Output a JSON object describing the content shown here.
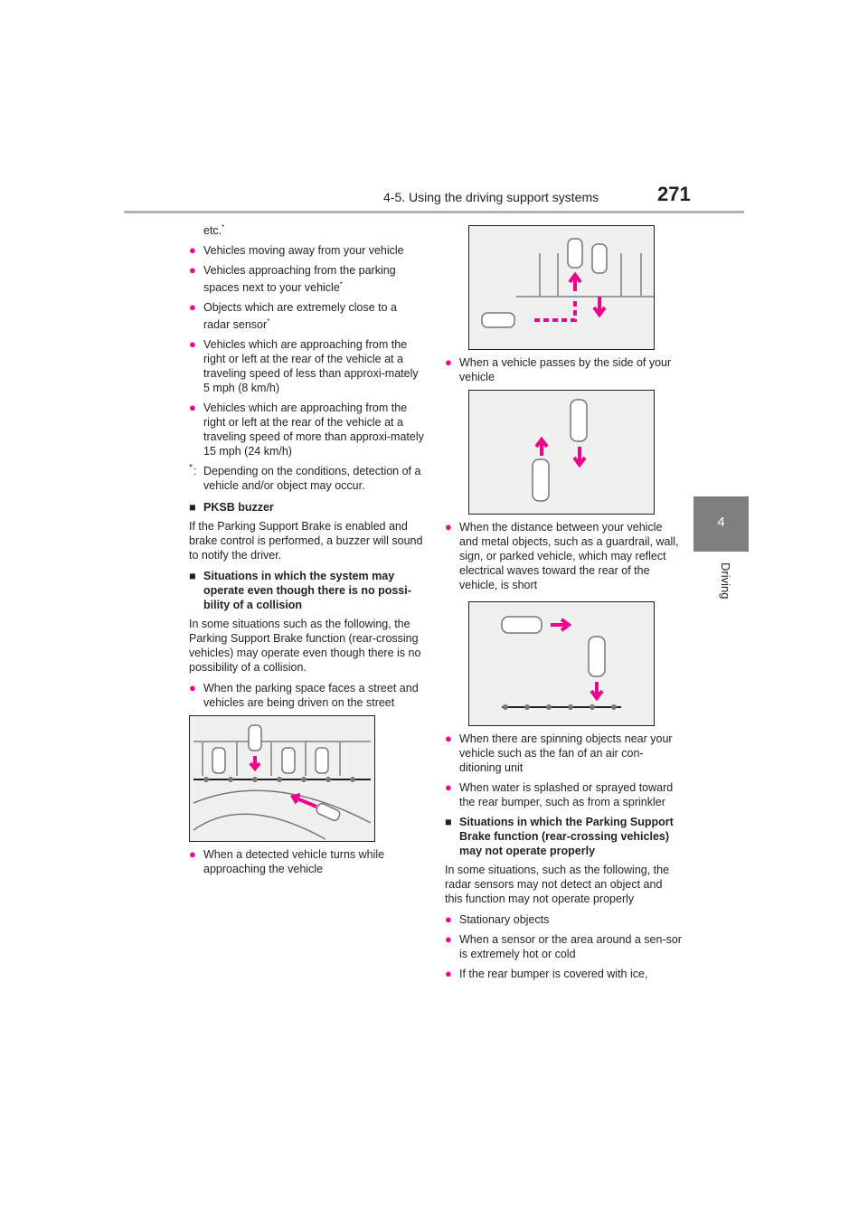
{
  "header": {
    "section": "4-5. Using the driving support systems",
    "page_number": "271"
  },
  "side": {
    "chapter": "4",
    "label": "Driving"
  },
  "left": {
    "etc": "etc.",
    "b1": "Vehicles moving away from your vehicle",
    "b2": "Vehicles approaching from the parking spaces next to your vehicle",
    "b3": "Objects which are extremely close to a radar sensor",
    "b4": "Vehicles which are approaching from the right or left at the rear of the vehicle at a traveling speed of less than approxi-mately 5 mph (8 km/h)",
    "b5": "Vehicles which are approaching from the right or left at the rear of the vehicle at a traveling speed of more than approxi-mately 15 mph (24 km/h)",
    "note": "Depending on the conditions, detection of a vehicle and/or object may occur.",
    "h1": "PKSB buzzer",
    "p1": "If the Parking Support Brake is enabled and brake control is performed, a buzzer will sound to notify the driver.",
    "h2": "Situations in which the system may operate even though there is no possi-bility of a collision",
    "p2": "In some situations such as the following, the Parking Support Brake function (rear-crossing vehicles) may operate even though there is no possibility of a collision.",
    "b6": "When the parking space faces a street and vehicles are being driven on the street",
    "b7": "When a detected vehicle turns while approaching the vehicle"
  },
  "right": {
    "b1": "When a vehicle passes by the side of your vehicle",
    "b2": "When the distance between your vehicle and metal objects, such as a guardrail, wall, sign, or parked vehicle, which may reflect electrical waves toward the rear of the vehicle, is short",
    "b3": "When there are spinning objects near your vehicle such as the fan of an air con-ditioning unit",
    "b4": "When water is splashed or sprayed toward the rear bumper, such as from a sprinkler",
    "h3": "Situations in which the Parking Support Brake function (rear-crossing vehicles) may not operate properly",
    "p3": "In some situations, such as the following, the radar sensors may not detect an object and this function may not operate properly",
    "b5": "Stationary objects",
    "b6": "When a sensor or the area around a sen-sor is extremely hot or cold",
    "b7": "If the rear bumper is covered with ice,"
  },
  "marks": {
    "bullet": "●",
    "square": "■",
    "asterisk": "*",
    "colon": ":"
  },
  "colors": {
    "accent": "#ec008c",
    "tab": "#7f7f7f",
    "rule": "#b3b3b3"
  }
}
